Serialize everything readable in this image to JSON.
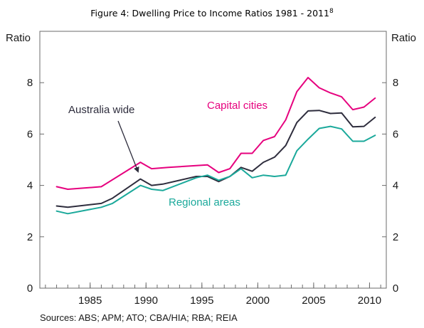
{
  "chart_data": {
    "type": "line",
    "title": "Figure 4: Dwelling Price to Income Ratios 1981 - 2011",
    "title_superscript": "8",
    "y_unit_left": "Ratio",
    "y_unit_right": "Ratio",
    "xlim": [
      1980.5,
      2011.5
    ],
    "ylim": [
      0,
      10
    ],
    "y_ticks": [
      0,
      2,
      4,
      6,
      8
    ],
    "x_ticks": [
      1985,
      1990,
      1995,
      2000,
      2005,
      2010
    ],
    "grid": false,
    "source": "Sources: ABS; APM; ATO; CBA/HIA; RBA; REIA",
    "series": [
      {
        "name": "Capital cities",
        "color": "#e6007e",
        "x": [
          1982,
          1983,
          1986,
          1989.5,
          1990.5,
          1992,
          1995.5,
          1996.5,
          1997.5,
          1998.5,
          1999.5,
          2000.5,
          2001.5,
          2002.5,
          2003.5,
          2004.5,
          2005.5,
          2006.5,
          2007.5,
          2008.5,
          2009.5,
          2010.5
        ],
        "y": [
          3.95,
          3.85,
          3.95,
          4.9,
          4.65,
          4.7,
          4.8,
          4.5,
          4.65,
          5.25,
          5.25,
          5.75,
          5.9,
          6.55,
          7.65,
          8.2,
          7.8,
          7.6,
          7.45,
          6.95,
          7.05,
          7.4
        ]
      },
      {
        "name": "Australia wide",
        "color": "#2e2d3d",
        "x": [
          1982,
          1983,
          1986,
          1987,
          1989.5,
          1990.5,
          1991.5,
          1994.5,
          1995.5,
          1996.5,
          1997.5,
          1998.5,
          1999.5,
          2000.5,
          2001.5,
          2002.5,
          2003.5,
          2004.5,
          2005.5,
          2006.5,
          2007.5,
          2008.5,
          2009.5,
          2010.5
        ],
        "y": [
          3.2,
          3.15,
          3.3,
          3.5,
          4.25,
          4.0,
          4.05,
          4.35,
          4.35,
          4.15,
          4.35,
          4.7,
          4.55,
          4.9,
          5.1,
          5.55,
          6.45,
          6.9,
          6.92,
          6.8,
          6.82,
          6.28,
          6.3,
          6.65
        ]
      },
      {
        "name": "Regional areas",
        "color": "#1ba99b",
        "x": [
          1982,
          1983,
          1986,
          1987,
          1989.5,
          1990.5,
          1991.5,
          1994.5,
          1995.5,
          1996.5,
          1997.5,
          1998.5,
          1999.5,
          2000.5,
          2001.5,
          2002.5,
          2003.5,
          2004.5,
          2005.5,
          2006.5,
          2007.5,
          2008.5,
          2009.5,
          2010.5
        ],
        "y": [
          3.0,
          2.9,
          3.15,
          3.3,
          4.0,
          3.85,
          3.8,
          4.3,
          4.4,
          4.2,
          4.35,
          4.65,
          4.3,
          4.4,
          4.35,
          4.4,
          5.35,
          5.8,
          6.22,
          6.3,
          6.2,
          5.72,
          5.72,
          5.95
        ]
      }
    ],
    "annotations": [
      {
        "text": "Australia wide",
        "series": "Australia wide",
        "arrow": true
      },
      {
        "text": "Capital cities",
        "series": "Capital cities",
        "arrow": false
      },
      {
        "text": "Regional areas",
        "series": "Regional areas",
        "arrow": false
      }
    ]
  }
}
